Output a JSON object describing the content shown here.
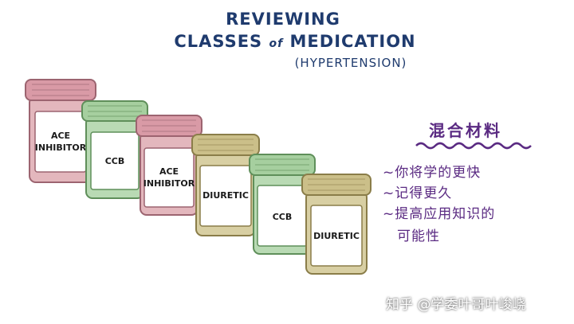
{
  "title": {
    "line1": "REVIEWING",
    "line2_a": "CLASSES ",
    "line2_of": "of",
    "line2_b": " MEDICATION",
    "line3": "(HYPERTENSION)"
  },
  "bottles": [
    {
      "line1": "ACE",
      "line2": "INHIBITOR",
      "color": "#c98a94"
    },
    {
      "line1": "CCB",
      "line2": "",
      "color": "#8fbf8a"
    },
    {
      "line1": "ACE",
      "line2": "INHIBITOR",
      "color": "#c98a94"
    },
    {
      "line1": "DIURETIC",
      "line2": "",
      "color": "#b8ab78"
    },
    {
      "line1": "CCB",
      "line2": "",
      "color": "#8fbf8a"
    },
    {
      "line1": "DIURETIC",
      "line2": "",
      "color": "#b8ab78"
    }
  ],
  "note": {
    "title": "混合材料",
    "bullets": [
      "~你将学的更快",
      "~记得更久",
      "~提高应用知识的"
    ],
    "bullet3_cont": "可能性"
  },
  "watermark": "知乎 @学委叶哥叶峻峣",
  "colors": {
    "title": "#1f3b6e",
    "note": "#5a2a82"
  }
}
